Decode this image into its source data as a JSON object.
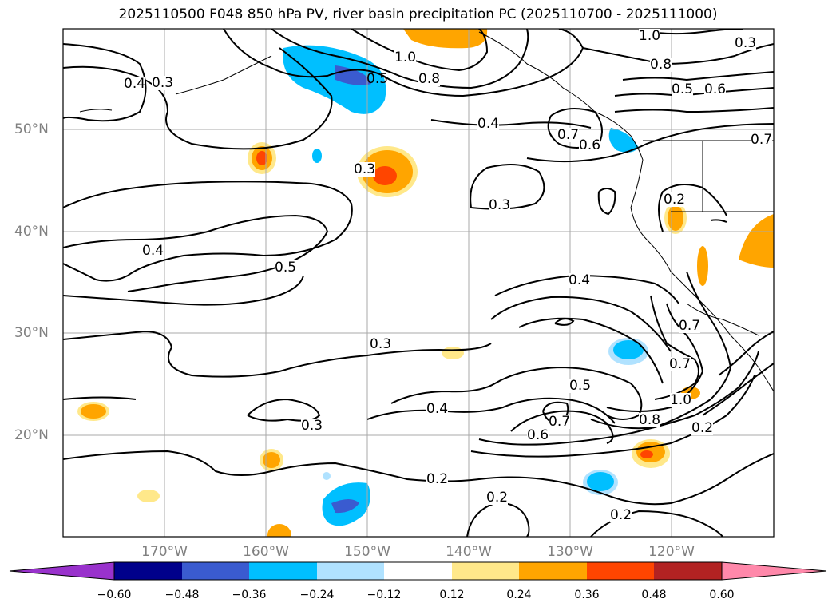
{
  "title": "2025110500 F048 850 hPa PV, river basin precipitation PC (2025110700 - 2025111000)",
  "latitude_labels": [
    "50°N",
    "40°N",
    "30°N",
    "20°N"
  ],
  "longitude_labels": [
    "170°W",
    "160°W",
    "150°W",
    "140°W",
    "130°W",
    "120°W"
  ],
  "contour_labels": [
    "1.0",
    "0.8",
    "0.5",
    "0.6",
    "0.4",
    "0.3",
    "0.7",
    "0.6",
    "0.3",
    "0.3",
    "0.2",
    "0.4",
    "0.5",
    "0.4",
    "0.3",
    "0.7",
    "0.4",
    "0.5",
    "0.7",
    "0.6",
    "0.8",
    "1.0",
    "0.2",
    "0.3",
    "0.2",
    "0.2",
    "0.2",
    "0.7",
    "0.7",
    "0.4",
    "0.3",
    "0.5",
    "1.0",
    "0.8"
  ],
  "colorbar": {
    "ticks": [
      "−0.60",
      "−0.48",
      "−0.36",
      "−0.24",
      "−0.12",
      "0.12",
      "0.24",
      "0.36",
      "0.48",
      "0.60"
    ],
    "colors": [
      "#9932cc",
      "#00008b",
      "#3a5bd0",
      "#00bfff",
      "#b0e2ff",
      "#ffffff",
      "#ffe88a",
      "#ffa500",
      "#ff4500",
      "#b22222",
      "#ff88aa"
    ]
  },
  "colors": {
    "grid": "#a9a9a9",
    "contour": "#000000",
    "axis_labels": "#808080"
  }
}
